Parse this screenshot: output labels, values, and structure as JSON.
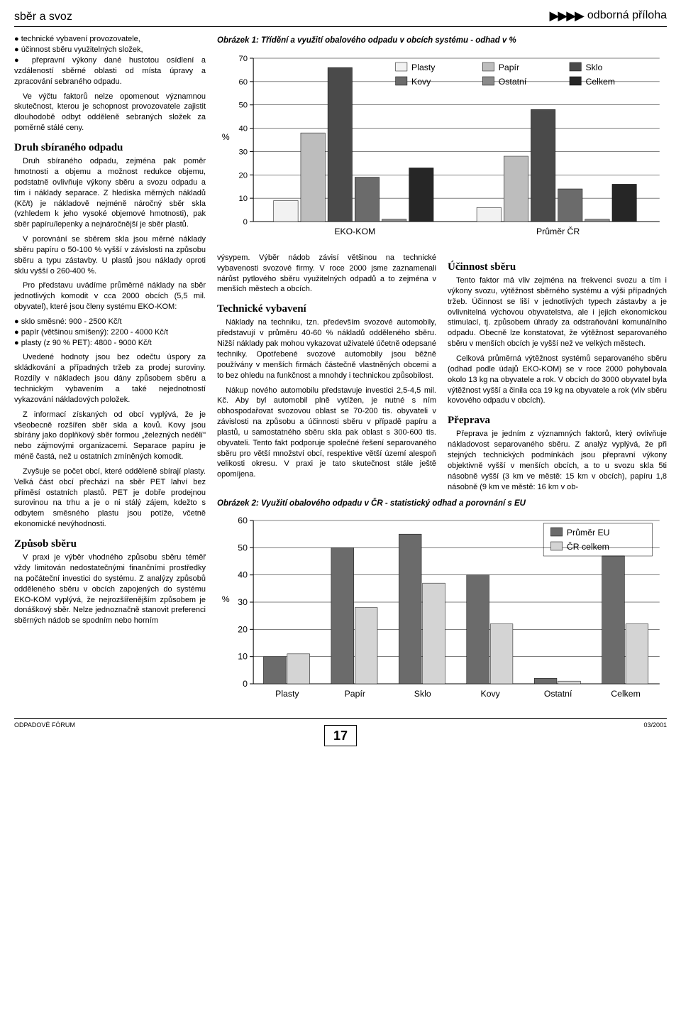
{
  "header": {
    "left": "sběr a svoz",
    "right": "odborná příloha"
  },
  "col1": {
    "bullets_top": [
      "technické vybavení provozovatele,",
      "účinnost sběru využitelných složek,",
      "přepravní výkony dané hustotou osídlení a vzdáleností sběrné oblasti od místa úpravy a zpracování sebraného odpadu."
    ],
    "p1": "Ve výčtu faktorů nelze opomenout významnou skutečnost, kterou je schopnost provozovatele zajistit dlouhodobě odbyt odděleně sebraných složek za poměrně stálé ceny.",
    "h1": "Druh sbíraného odpadu",
    "p2": "Druh sbíraného odpadu, zejména pak poměr hmotnosti a objemu a možnost redukce objemu, podstatně ovlivňuje výkony sběru a svozu odpadu a tím i náklady separace. Z hlediska měrných nákladů (Kč/t) je nákladově nejméně náročný sběr skla (vzhledem k jeho vysoké objemové hmotnosti), pak sběr papíru/lepenky a nejnáročnější je sběr plastů.",
    "p3": "V porovnání se sběrem skla jsou měrné náklady sběru papíru o 50-100 % vyšší v závislosti na způsobu sběru a typu zástavby. U plastů jsou náklady oproti sklu vyšší o 260-400 %.",
    "p4": "Pro představu uvádíme průměrné náklady na sběr jednotlivých komodit v cca 2000 obcích (5,5 mil. obyvatel), které jsou členy systému EKO-KOM:",
    "bullets_mid": [
      "sklo směsné: 900 - 2500 Kč/t",
      "papír (většinou smíšený): 2200 - 4000 Kč/t",
      "plasty (z 90 % PET): 4800 - 9000 Kč/t"
    ],
    "p5": "Uvedené hodnoty jsou bez odečtu úspory za skládkování a případných tržeb za prodej suroviny. Rozdíly v nákladech jsou dány způsobem sběru a technickým vybavením a také nejednotností vykazování nákladových položek.",
    "p6": "Z informací získaných od obcí vyplývá, že je všeobecně rozšířen sběr skla a kovů. Kovy jsou sbírány jako doplňkový sběr formou „železných nedělí\" nebo zájmovými organizacemi. Separace papíru je méně častá, než u ostatních zmíněných komodit.",
    "p7": "Zvyšuje se počet obcí, které odděleně sbírají plasty. Velká část obcí přechází na sběr PET lahví bez příměsí ostatních plastů. PET je dobře prodejnou surovinou na trhu a je o ni stálý zájem, kdežto s odbytem směsného plastu jsou potíže, včetně ekonomické nevýhodnosti.",
    "h2": "Způsob sběru",
    "p8": "V praxi je výběr vhodného způsobu sběru téměř vždy limitován nedostatečnými finančními prostředky na počáteční investici do systému. Z analýzy způsobů odděleného sběru v obcích zapojených do systému EKO-KOM vyplývá, že nejrozšířenějším způsobem je donáškový sběr. Nelze jednoznačně stanovit preferenci sběrných nádob se spodním nebo horním"
  },
  "fig1": {
    "title": "Obrázek 1: Třídění a využití obalového odpadu v obcích systému - odhad v %",
    "type": "grouped-bar",
    "legend": [
      "Plasty",
      "Kovy",
      "Papír",
      "Ostatní",
      "Sklo",
      "Celkem"
    ],
    "colors": {
      "Plasty": "#f2f2f2",
      "Kovy": "#6b6b6b",
      "Papír": "#bdbdbd",
      "Ostatní": "#8a8a8a",
      "Sklo": "#4a4a4a",
      "Celkem": "#262626"
    },
    "groups": [
      "EKO-KOM",
      "Průměr ČR"
    ],
    "data": {
      "EKO-KOM": {
        "Plasty": 9,
        "Papír": 38,
        "Sklo": 66,
        "Kovy": 19,
        "Ostatní": 1,
        "Celkem": 23
      },
      "Průměr ČR": {
        "Plasty": 6,
        "Papír": 28,
        "Sklo": 48,
        "Kovy": 14,
        "Ostatní": 1,
        "Celkem": 16
      }
    },
    "ylim": [
      0,
      70
    ],
    "ytick_step": 10,
    "ylabel": "%",
    "background": "#ffffff",
    "grid_color": "#000000",
    "bar_width": 0.8,
    "label_fontsize": 12
  },
  "mid": {
    "p1": "výsypem. Výběr nádob závisí většinou na technické vybavenosti svozové firmy. V roce 2000 jsme zaznamenali nárůst pytlového sběru využitelných odpadů a to zejména v menších městech a obcích.",
    "h1": "Technické vybavení",
    "p2": "Náklady na techniku, tzn. především svozové automobily, představují v průměru 40-60 % nákladů odděleného sběru. Nižší náklady pak mohou vykazovat uživatelé účetně odepsané techniky. Opotřebené svozové automobily jsou běžně používány v menších firmách částečně vlastněných obcemi a to bez ohledu na funkčnost a mnohdy i technickou způsobilost.",
    "p3": "Nákup nového automobilu představuje investici 2,5-4,5 mil. Kč. Aby byl automobil plně vytížen, je nutné s ním obhospodařovat svozovou oblast se 70-200 tis. obyvateli v závislosti na způsobu a účinnosti sběru v případě papíru a plastů, u samostatného sběru skla pak oblast s 300-600 tis. obyvateli. Tento fakt podporuje společné řešení separovaného sběru pro větší množství obcí, respektive větší území alespoň velikosti okresu. V praxi je tato skutečnost stále ještě opomíjena."
  },
  "right": {
    "h1": "Účinnost sběru",
    "p1": "Tento faktor má vliv zejména na frekvenci svozu a tím i výkony svozu, výtěžnost sběrného systému a výši případných tržeb. Účinnost se liší v jednotlivých typech zástavby a je ovlivnitelná výchovou obyvatelstva, ale i jejich ekonomickou stimulací, tj. způsobem úhrady za odstraňování komunálního odpadu. Obecně lze konstatovat, že výtěžnost separovaného sběru v menších obcích je vyšší než ve velkých městech.",
    "p2": "Celková průměrná výtěžnost systémů separovaného sběru (odhad podle údajů EKO-KOM) se v roce 2000 pohybovala okolo 13 kg na obyvatele a rok. V obcích do 3000 obyvatel byla výtěžnost vyšší a činila cca 19 kg na obyvatele a rok (vliv sběru kovového odpadu v obcích).",
    "h2": "Přeprava",
    "p3": "Přeprava je jedním z významných faktorů, který ovlivňuje nákladovost separovaného sběru. Z analýz vyplývá, že při stejných technických podmínkách jsou přepravní výkony objektivně vyšší v menších obcích, a to u svozu skla 5ti násobně vyšší (3 km ve městě: 15 km v obcích), papíru 1,8 násobně (9 km ve městě: 16 km v ob-"
  },
  "fig2": {
    "title": "Obrázek 2: Využití obalového odpadu v ČR - statistický odhad a porovnání s EU",
    "type": "grouped-bar",
    "legend": [
      "Průměr EU",
      "ČR celkem"
    ],
    "colors": {
      "Průměr EU": "#6b6b6b",
      "ČR celkem": "#d4d4d4"
    },
    "categories": [
      "Plasty",
      "Papír",
      "Sklo",
      "Kovy",
      "Ostatní",
      "Celkem"
    ],
    "data": {
      "Průměr EU": {
        "Plasty": 10,
        "Papír": 50,
        "Sklo": 55,
        "Kovy": 40,
        "Ostatní": 2,
        "Celkem": 47
      },
      "ČR celkem": {
        "Plasty": 11,
        "Papír": 28,
        "Sklo": 37,
        "Kovy": 22,
        "Ostatní": 1,
        "Celkem": 22
      }
    },
    "ylim": [
      0,
      60
    ],
    "ytick_step": 10,
    "ylabel": "%",
    "background": "#ffffff",
    "grid_color": "#000000",
    "bar_width": 0.7,
    "label_fontsize": 12
  },
  "footer": {
    "left": "ODPADOVÉ FÓRUM",
    "right": "03/2001",
    "page": "17"
  }
}
